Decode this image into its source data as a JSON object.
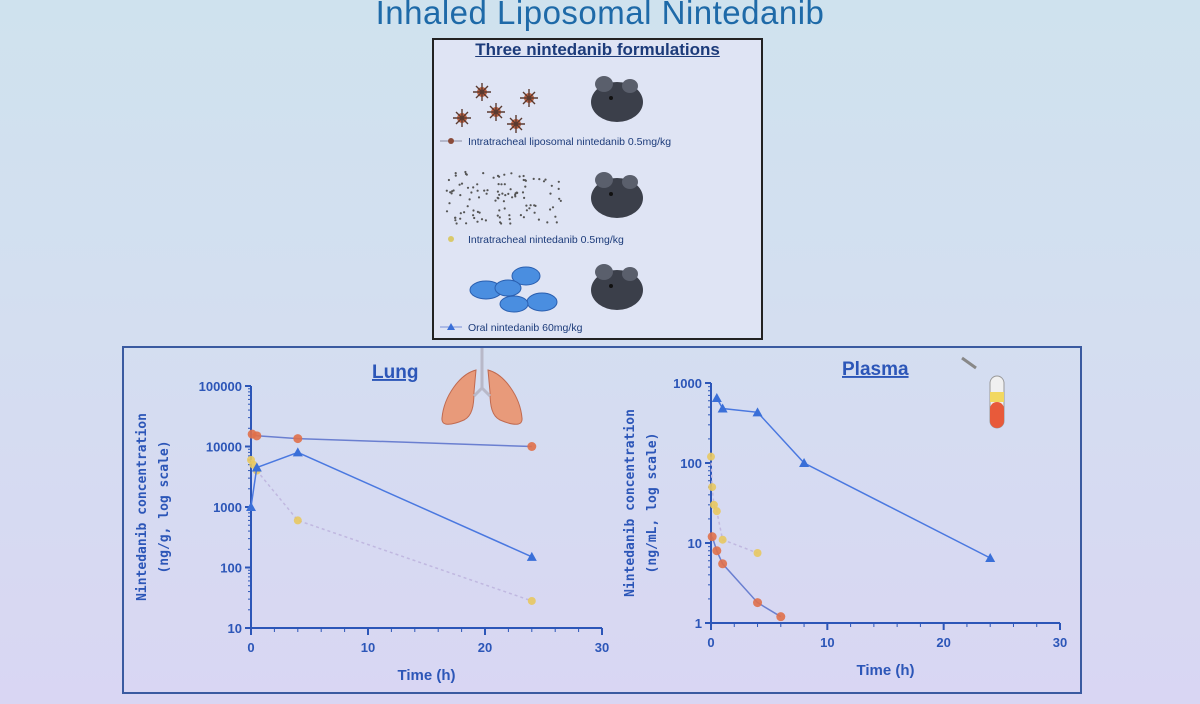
{
  "slide": {
    "title": "Inhaled Liposomal Nintedanib"
  },
  "formulations": {
    "title": "Three nintedanib formulations",
    "items": [
      {
        "label": "Intratracheal liposomal nintedanib 0.5mg/kg",
        "color": "#8a4b3a",
        "icon": "liposome-particles-icon"
      },
      {
        "label": "Intratracheal nintedanib 0.5mg/kg",
        "color": "#d9c96a",
        "icon": "dispersed-particles-icon"
      },
      {
        "label": "Oral nintedanib 60mg/kg",
        "color": "#3a6fd8",
        "icon": "oral-pills-icon"
      }
    ]
  },
  "colors": {
    "liposomal": "#e0704a",
    "intratracheal": "#e8c860",
    "oral": "#3a6fd8",
    "axis": "#2c56b8"
  },
  "chart_data": [
    {
      "type": "line",
      "title": "Lung",
      "xlabel": "Time (h)",
      "ylabel": "Nintedanib concentration",
      "ylabel2": "(ng/g, log scale)",
      "xlim": [
        0,
        30
      ],
      "ylim": [
        10,
        100000
      ],
      "yscale": "log",
      "xticks": [
        "0",
        "10",
        "20",
        "30"
      ],
      "yticks": [
        "10",
        "100",
        "1000",
        "10000",
        "100000"
      ],
      "series": [
        {
          "key": "liposomal",
          "points": [
            [
              0.1,
              16000
            ],
            [
              0.5,
              15000
            ],
            [
              4,
              13500
            ],
            [
              24,
              10000
            ]
          ]
        },
        {
          "key": "intratracheal",
          "points": [
            [
              0,
              6000
            ],
            [
              0.2,
              5000
            ],
            [
              0.5,
              4000
            ],
            [
              4,
              600
            ],
            [
              24,
              28
            ]
          ]
        },
        {
          "key": "oral",
          "points": [
            [
              0,
              1000
            ],
            [
              0.5,
              4500
            ],
            [
              4,
              8000
            ],
            [
              24,
              150
            ]
          ]
        }
      ]
    },
    {
      "type": "line",
      "title": "Plasma",
      "xlabel": "Time (h)",
      "ylabel": "Nintedanib concentration",
      "ylabel2": "(ng/mL, log scale)",
      "xlim": [
        0,
        30
      ],
      "ylim": [
        1,
        1000
      ],
      "yscale": "log",
      "xticks": [
        "0",
        "10",
        "20",
        "30"
      ],
      "yticks": [
        "1",
        "10",
        "100",
        "1000"
      ],
      "series": [
        {
          "key": "oral",
          "points": [
            [
              0.5,
              650
            ],
            [
              1,
              480
            ],
            [
              4,
              430
            ],
            [
              8,
              100
            ],
            [
              24,
              6.5
            ]
          ]
        },
        {
          "key": "intratracheal",
          "points": [
            [
              0,
              120
            ],
            [
              0.1,
              50
            ],
            [
              0.25,
              30
            ],
            [
              0.5,
              25
            ],
            [
              1,
              11
            ],
            [
              4,
              7.5
            ]
          ]
        },
        {
          "key": "liposomal",
          "points": [
            [
              0.1,
              12
            ],
            [
              0.5,
              8
            ],
            [
              1,
              5.5
            ],
            [
              4,
              1.8
            ],
            [
              6,
              1.2
            ]
          ]
        }
      ]
    }
  ]
}
